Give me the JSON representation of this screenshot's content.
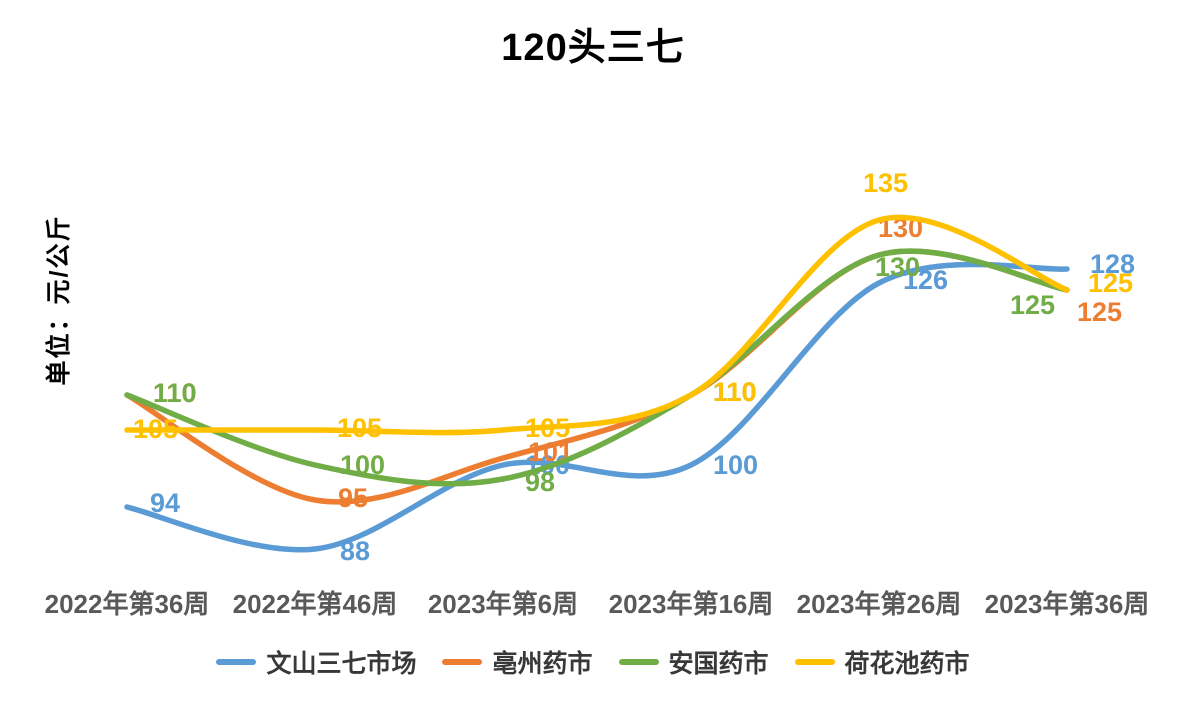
{
  "title": "120头三七",
  "y_axis_label": "单位：元/公斤",
  "chart_data": {
    "type": "line",
    "title": "120头三七",
    "ylabel": "单位：元/公斤",
    "categories": [
      "2022年第36周",
      "2022年第46周",
      "2023年第6周",
      "2023年第16周",
      "2023年第26周",
      "2023年第36周"
    ],
    "series": [
      {
        "name": "文山三七市场",
        "color": "#5B9BD5",
        "values": [
          94,
          88,
          100,
          100,
          126,
          128
        ]
      },
      {
        "name": "亳州药市",
        "color": "#ED7D31",
        "values": [
          110,
          95,
          101,
          110,
          130,
          125
        ]
      },
      {
        "name": "安国药市",
        "color": "#70AD47",
        "values": [
          110,
          100,
          98,
          110,
          130,
          125
        ]
      },
      {
        "name": "荷花池药市",
        "color": "#FFC000",
        "values": [
          105,
          105,
          105,
          110,
          135,
          125
        ]
      }
    ],
    "smooth": true,
    "data_labels": true,
    "legend_position": "bottom",
    "gridlines": false,
    "value_axis_visible": false,
    "approx_value_range": [
      88,
      135
    ]
  },
  "text_colors": {
    "title": "#000000",
    "axis_labels": "#595959",
    "legend_labels": "#383838"
  }
}
